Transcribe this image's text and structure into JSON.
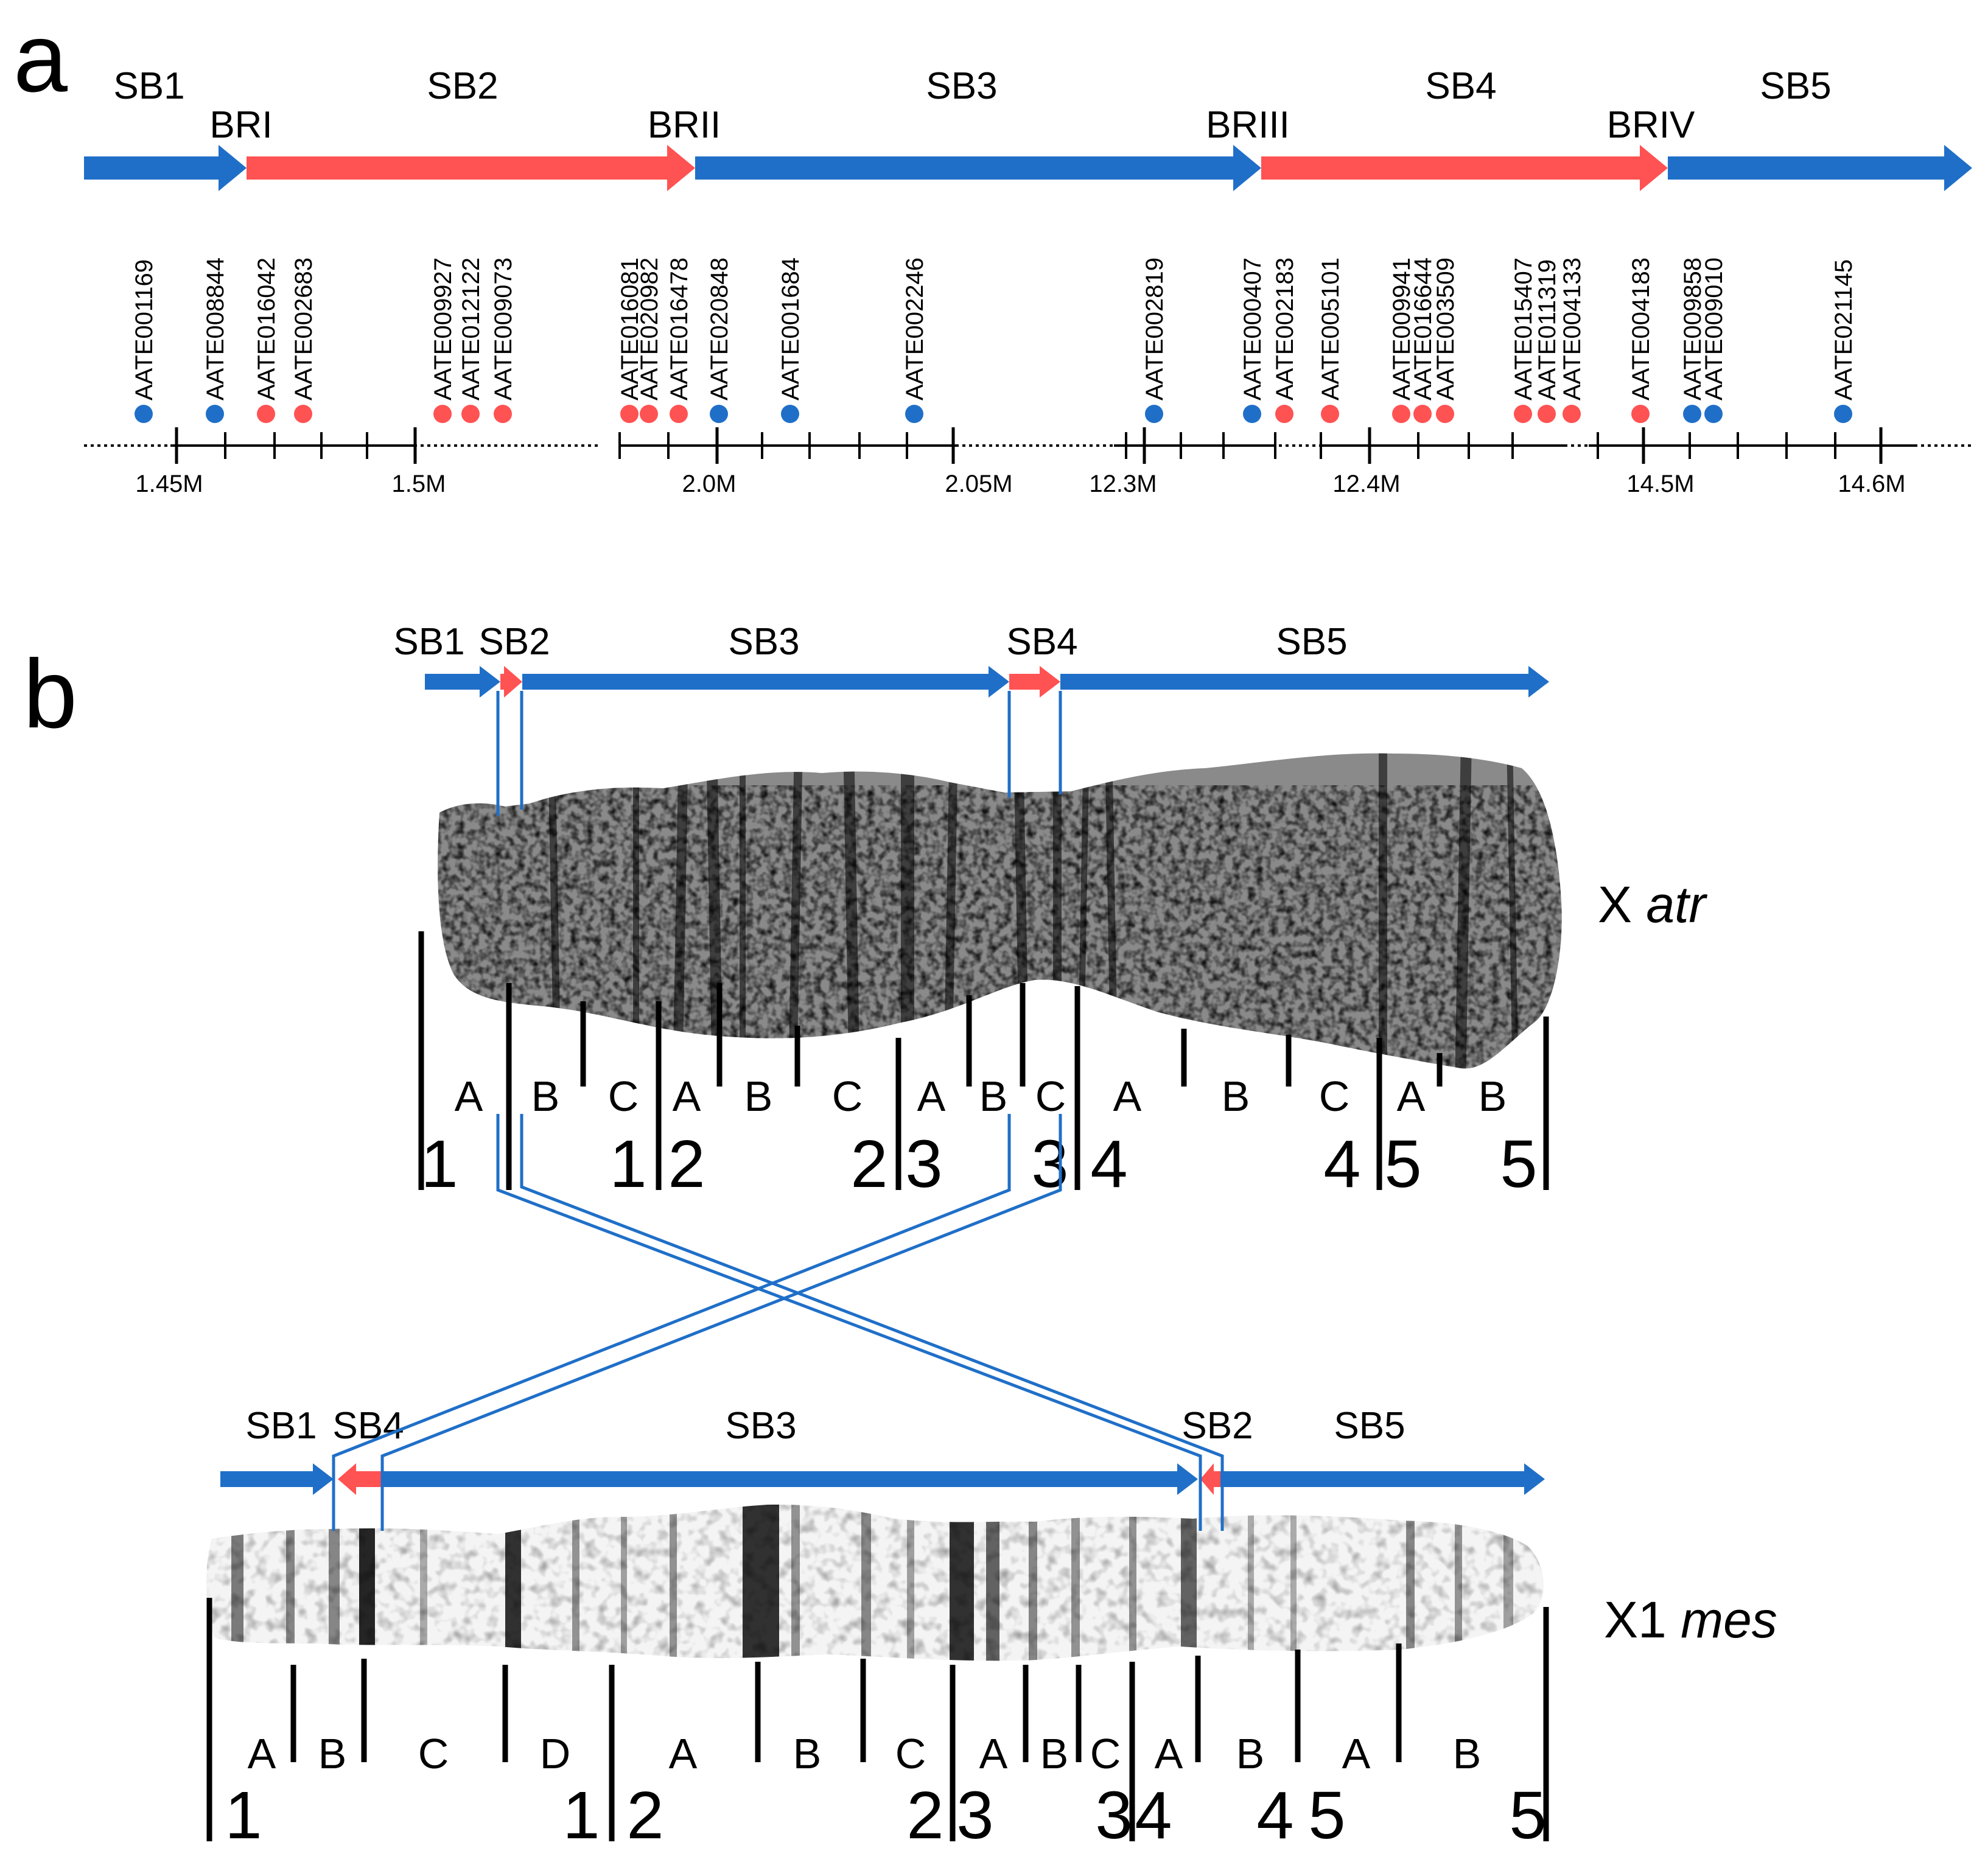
{
  "colors": {
    "blue": "#1f6fc8",
    "red": "#ff5252",
    "black": "#000000"
  },
  "panel_a": {
    "letter": "a",
    "segments": [
      {
        "label": "SB1",
        "color": "blue"
      },
      {
        "label": "SB2",
        "color": "red"
      },
      {
        "label": "SB3",
        "color": "blue"
      },
      {
        "label": "SB4",
        "color": "red"
      },
      {
        "label": "SB5",
        "color": "blue"
      }
    ],
    "breakpoints": [
      "BRI",
      "BRII",
      "BRIII",
      "BRIV"
    ],
    "markers": [
      {
        "name": "AATE001169",
        "color": "blue"
      },
      {
        "name": "AATE008844",
        "color": "blue"
      },
      {
        "name": "AATE016042",
        "color": "red"
      },
      {
        "name": "AATE002683",
        "color": "red"
      },
      {
        "name": "AATE009927",
        "color": "red"
      },
      {
        "name": "AATE012122",
        "color": "red"
      },
      {
        "name": "AATE009073",
        "color": "red"
      },
      {
        "name": "AATE016081",
        "color": "red"
      },
      {
        "name": "AATE020982",
        "color": "red"
      },
      {
        "name": "AATE016478",
        "color": "red"
      },
      {
        "name": "AATE020848",
        "color": "blue"
      },
      {
        "name": "AATE001684",
        "color": "blue"
      },
      {
        "name": "AATE002246",
        "color": "blue"
      },
      {
        "name": "AATE002819",
        "color": "blue"
      },
      {
        "name": "AATE000407",
        "color": "blue"
      },
      {
        "name": "AATE002183",
        "color": "red"
      },
      {
        "name": "AATE005101",
        "color": "red"
      },
      {
        "name": "AATE009941",
        "color": "red"
      },
      {
        "name": "AATE016644",
        "color": "red"
      },
      {
        "name": "AATE003509",
        "color": "red"
      },
      {
        "name": "AATE015407",
        "color": "red"
      },
      {
        "name": "AATE011319",
        "color": "red"
      },
      {
        "name": "AATE004133",
        "color": "red"
      },
      {
        "name": "AATE004183",
        "color": "red"
      },
      {
        "name": "AATE009858",
        "color": "blue"
      },
      {
        "name": "AATE009010",
        "color": "blue"
      },
      {
        "name": "AATE021145",
        "color": "blue"
      }
    ],
    "scale_labels": [
      "1.45M",
      "1.5M",
      "2.0M",
      "2.05M",
      "12.3M",
      "12.4M",
      "14.5M",
      "14.6M"
    ]
  },
  "panel_b": {
    "letter": "b",
    "x_atr": {
      "chromosome_label": "X",
      "species": "atr",
      "segments": [
        {
          "label": "SB1",
          "color": "blue"
        },
        {
          "label": "SB2",
          "color": "red"
        },
        {
          "label": "SB3",
          "color": "blue"
        },
        {
          "label": "SB4",
          "color": "red"
        },
        {
          "label": "SB5",
          "color": "blue"
        }
      ],
      "band_letters": [
        "A",
        "B",
        "C",
        "A",
        "B",
        "C",
        "A",
        "B",
        "C",
        "A",
        "B",
        "C",
        "A",
        "B"
      ],
      "band_numbers": [
        "1",
        "1",
        "2",
        "2",
        "3",
        "3",
        "4",
        "4",
        "5",
        "5"
      ]
    },
    "x1_mes": {
      "chromosome_label": "X1",
      "species": "mes",
      "segments": [
        {
          "label": "SB1",
          "color": "blue"
        },
        {
          "label": "SB4",
          "color": "red"
        },
        {
          "label": "SB3",
          "color": "blue"
        },
        {
          "label": "SB2",
          "color": "red"
        },
        {
          "label": "SB5",
          "color": "blue"
        }
      ],
      "band_letters": [
        "A",
        "B",
        "C",
        "D",
        "A",
        "B",
        "C",
        "A",
        "B",
        "C",
        "A",
        "B",
        "A",
        "B"
      ],
      "band_numbers": [
        "1",
        "1",
        "2",
        "2",
        "3",
        "3",
        "4",
        "4",
        "5",
        "5"
      ]
    }
  }
}
